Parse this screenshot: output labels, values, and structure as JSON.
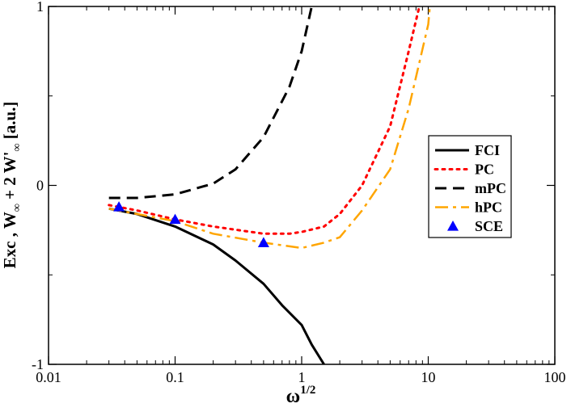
{
  "chart_data": {
    "type": "line",
    "xscale": "log",
    "xlim": [
      0.01,
      100
    ],
    "ylim": [
      -1,
      1
    ],
    "xlabel": {
      "base": "ω",
      "superscript": "1/2"
    },
    "ylabel": {
      "part1": "Exc ,  W",
      "sub1": "∞",
      "part2": "  + 2 W'",
      "sub2": "∞",
      "part3": "  [a.u.]"
    },
    "x_ticks": [
      {
        "value": 0.01,
        "label": "0.01"
      },
      {
        "value": 0.1,
        "label": "0.1"
      },
      {
        "value": 1,
        "label": "1"
      },
      {
        "value": 10,
        "label": "10"
      },
      {
        "value": 100,
        "label": "100"
      }
    ],
    "y_ticks": [
      {
        "value": -1,
        "label": "-1"
      },
      {
        "value": 0,
        "label": "0"
      },
      {
        "value": 1,
        "label": "1"
      }
    ],
    "legend_position": "right",
    "series": [
      {
        "name": "FCI",
        "style": "solid",
        "color": "#000000",
        "points": [
          [
            0.03,
            -0.13
          ],
          [
            0.05,
            -0.16
          ],
          [
            0.1,
            -0.23
          ],
          [
            0.2,
            -0.33
          ],
          [
            0.3,
            -0.42
          ],
          [
            0.5,
            -0.55
          ],
          [
            0.7,
            -0.67
          ],
          [
            1.0,
            -0.78
          ],
          [
            1.2,
            -0.89
          ],
          [
            1.5,
            -1.0
          ]
        ]
      },
      {
        "name": "PC",
        "style": "dotted",
        "color": "#ff0000",
        "points": [
          [
            0.03,
            -0.11
          ],
          [
            0.05,
            -0.14
          ],
          [
            0.1,
            -0.19
          ],
          [
            0.2,
            -0.23
          ],
          [
            0.5,
            -0.27
          ],
          [
            0.8,
            -0.27
          ],
          [
            1.0,
            -0.26
          ],
          [
            1.5,
            -0.23
          ],
          [
            2.0,
            -0.16
          ],
          [
            3.0,
            0.0
          ],
          [
            5.0,
            0.33
          ],
          [
            7.0,
            0.75
          ],
          [
            8.5,
            1.0
          ]
        ]
      },
      {
        "name": "mPC",
        "style": "dashed",
        "color": "#000000",
        "points": [
          [
            0.03,
            -0.07
          ],
          [
            0.05,
            -0.07
          ],
          [
            0.1,
            -0.05
          ],
          [
            0.2,
            0.01
          ],
          [
            0.3,
            0.09
          ],
          [
            0.5,
            0.27
          ],
          [
            0.8,
            0.55
          ],
          [
            1.0,
            0.75
          ],
          [
            1.2,
            1.0
          ]
        ]
      },
      {
        "name": "hPC",
        "style": "dashdot",
        "color": "#ffa500",
        "points": [
          [
            0.03,
            -0.13
          ],
          [
            0.05,
            -0.16
          ],
          [
            0.1,
            -0.2
          ],
          [
            0.2,
            -0.27
          ],
          [
            0.5,
            -0.32
          ],
          [
            1.0,
            -0.35
          ],
          [
            1.5,
            -0.32
          ],
          [
            2.0,
            -0.29
          ],
          [
            3.0,
            -0.14
          ],
          [
            5.0,
            0.09
          ],
          [
            7.0,
            0.43
          ],
          [
            10.0,
            0.9
          ],
          [
            10.3,
            1.0
          ]
        ]
      },
      {
        "name": "SCE",
        "style": "marker-triangle",
        "color": "#0000ff",
        "points": [
          [
            0.036,
            -0.12
          ],
          [
            0.1,
            -0.19
          ],
          [
            0.5,
            -0.32
          ]
        ]
      }
    ]
  }
}
